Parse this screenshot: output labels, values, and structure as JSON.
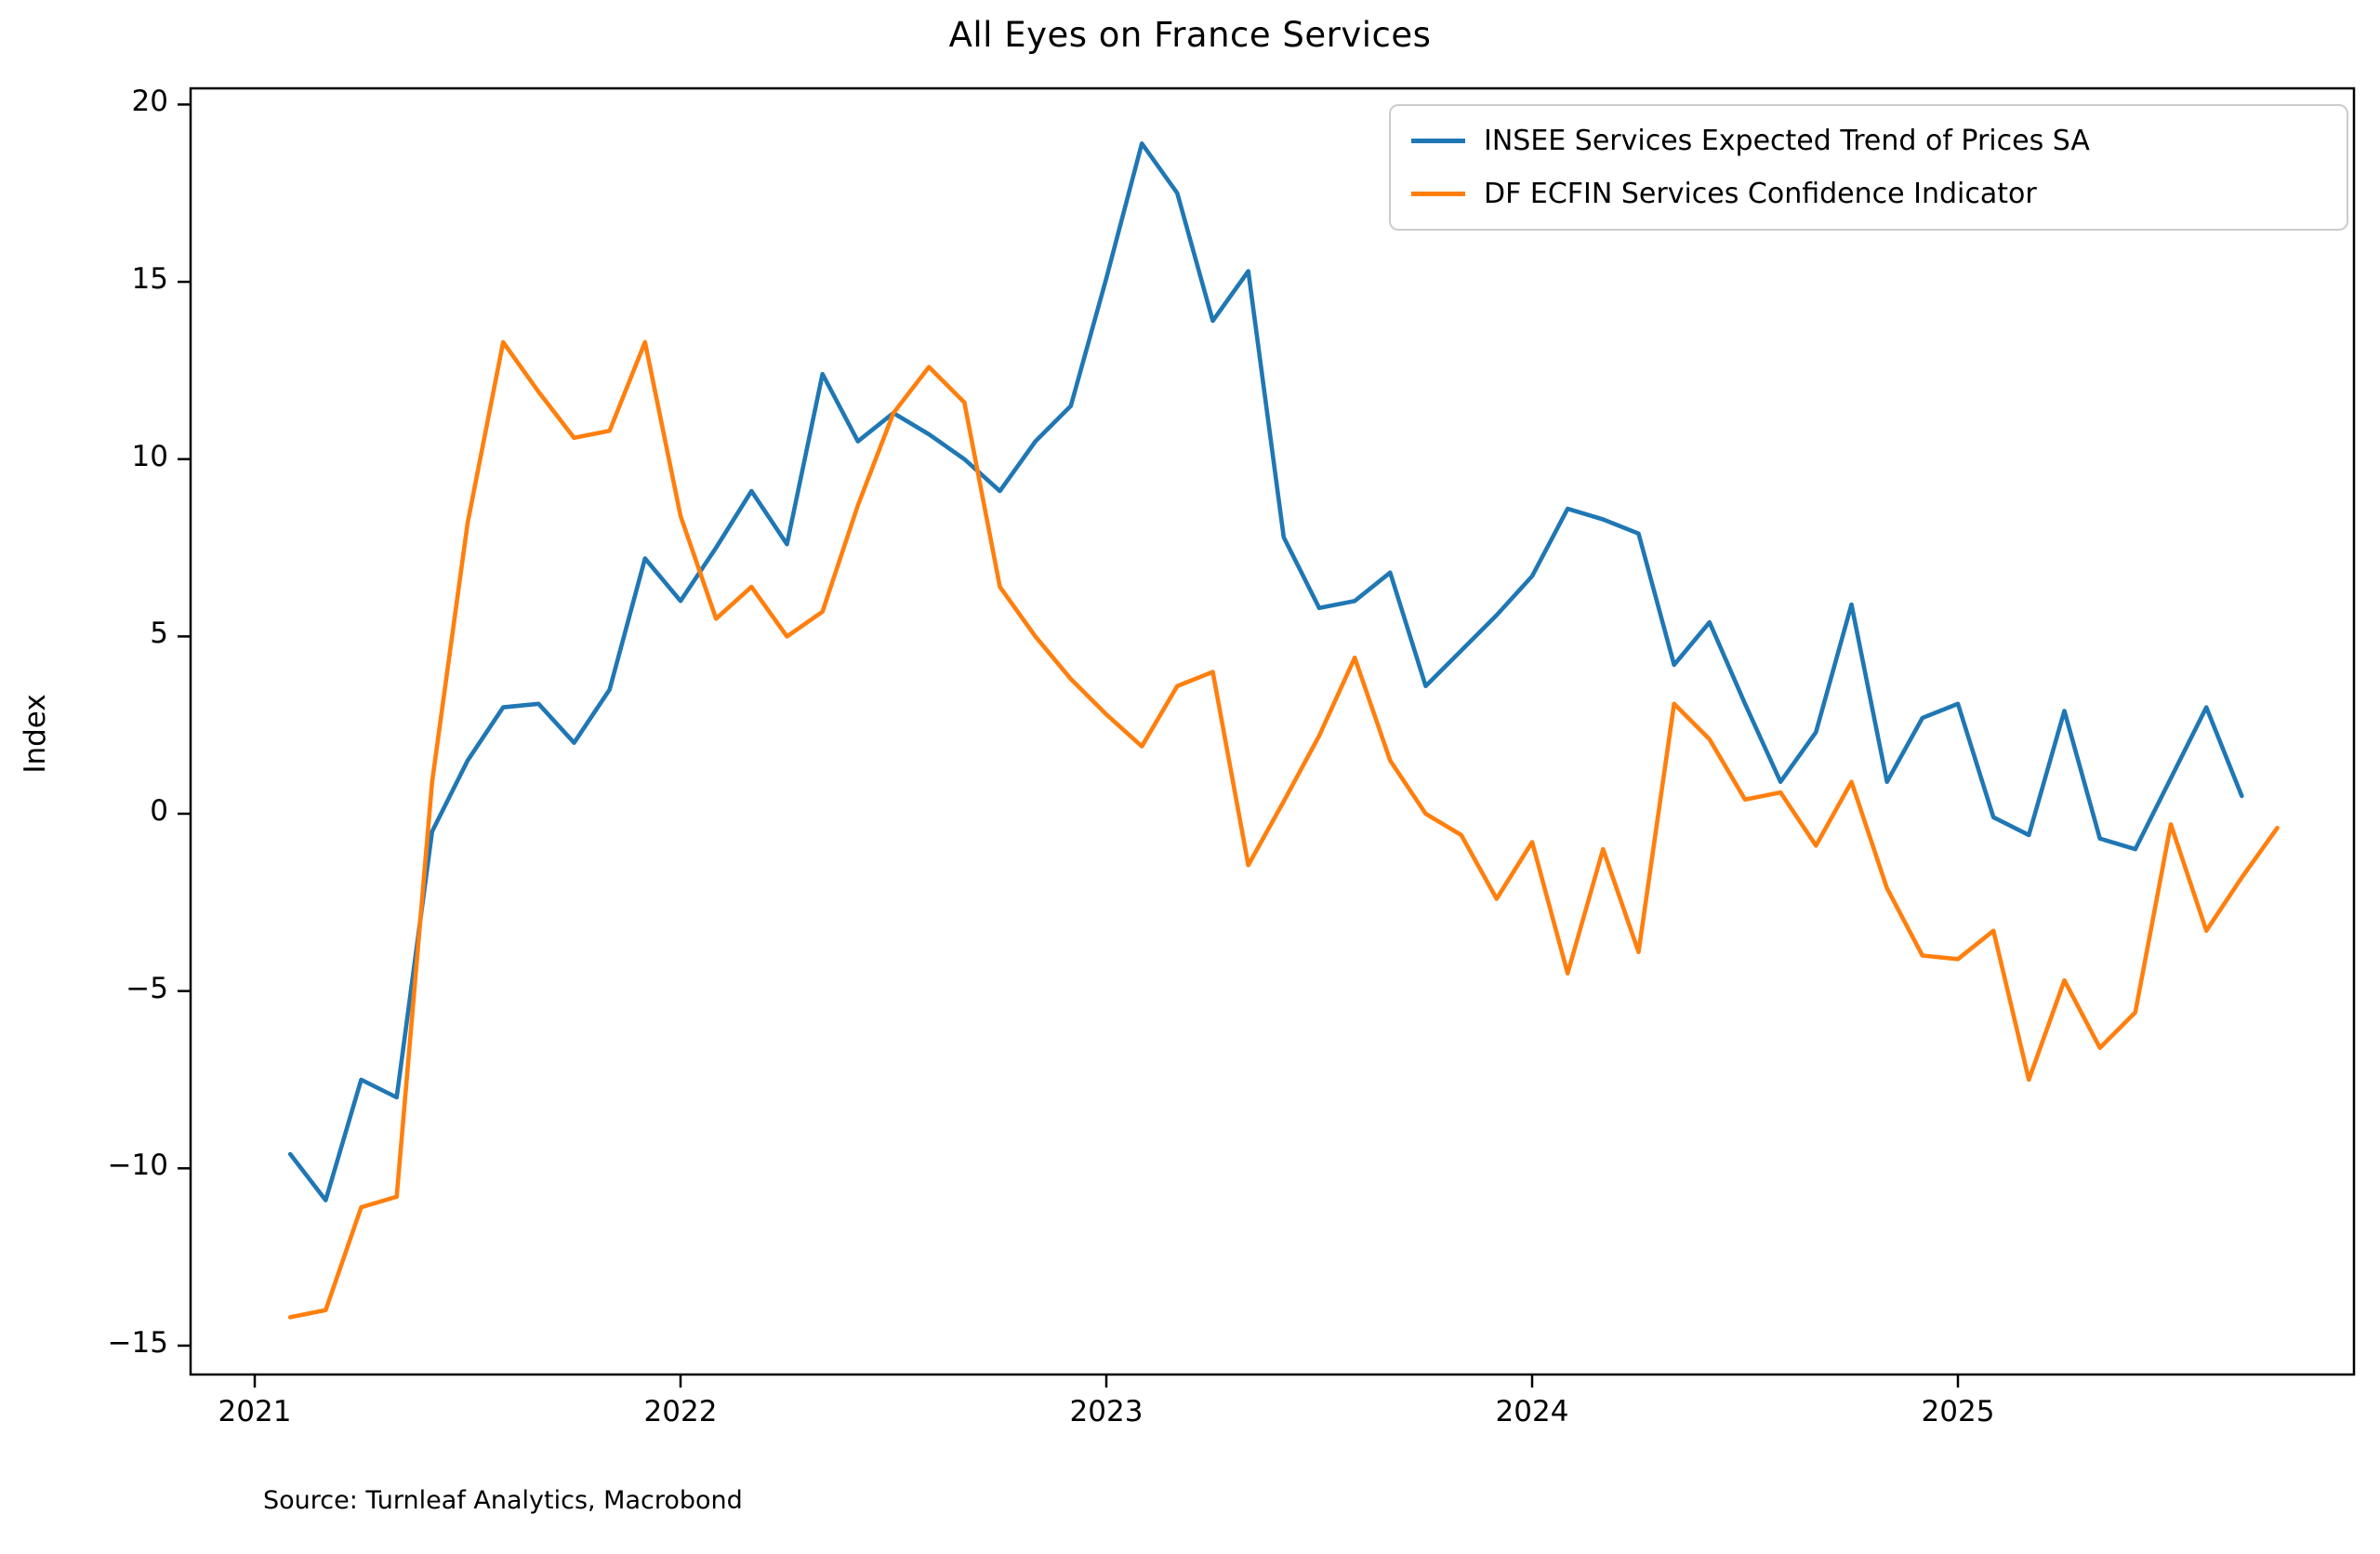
{
  "chart_data": {
    "type": "line",
    "title": "All Eyes on France Services",
    "xlabel": "",
    "ylabel": "Index",
    "source_note": "Source: Turnleaf Analytics, Macrobond",
    "grid": false,
    "legend_position": "upper right",
    "x_axis": {
      "unit": "month",
      "origin_label": "Jan 2021",
      "tick_months": [
        0,
        12,
        24,
        36,
        48
      ],
      "tick_labels": [
        "2021",
        "2022",
        "2023",
        "2024",
        "2025"
      ]
    },
    "y_axis": {
      "ticks": [
        20,
        15,
        10,
        5,
        0,
        -5,
        -10,
        -15
      ],
      "tick_labels": [
        "20",
        "15",
        "10",
        "5",
        "0",
        "−5",
        "−10",
        "−15"
      ],
      "ylim": [
        -15.8,
        20.4
      ]
    },
    "series": [
      {
        "name": "INSEE Services Expected Trend of Prices SA",
        "color": "#1f77b4",
        "start_month_offset": 1,
        "start_label": "Feb 2021",
        "end_label": "Sep 2025",
        "values": [
          -9.6,
          -10.9,
          -7.5,
          -8.0,
          -0.5,
          1.5,
          3.0,
          3.1,
          2.0,
          3.5,
          7.2,
          6.0,
          7.5,
          9.1,
          7.6,
          12.4,
          10.5,
          11.3,
          10.7,
          10.0,
          9.1,
          10.5,
          11.5,
          15.1,
          18.9,
          17.5,
          13.9,
          15.3,
          7.8,
          5.8,
          6.0,
          6.8,
          3.6,
          4.6,
          5.6,
          6.7,
          8.6,
          8.3,
          7.9,
          4.2,
          5.4,
          3.1,
          0.9,
          2.3,
          5.9,
          0.9,
          2.7,
          3.1,
          -0.1,
          -0.6,
          2.9,
          -0.7,
          -1.0,
          1.0,
          3.0,
          0.5
        ]
      },
      {
        "name": "DF ECFIN Services Confidence Indicator",
        "color": "#ff7f0e",
        "start_month_offset": 1,
        "start_label": "Feb 2021",
        "end_label": "Oct 2025",
        "values": [
          -14.2,
          -14.0,
          -11.1,
          -10.8,
          0.9,
          8.2,
          13.3,
          11.9,
          10.6,
          10.8,
          13.3,
          8.4,
          5.5,
          6.4,
          5.0,
          5.7,
          8.7,
          11.3,
          12.6,
          11.6,
          6.4,
          5.0,
          3.8,
          2.8,
          1.9,
          3.6,
          4.0,
          -1.45,
          0.35,
          2.2,
          4.4,
          1.5,
          0.0,
          -0.6,
          -2.4,
          -0.8,
          -4.5,
          -1.0,
          -3.9,
          3.1,
          2.1,
          0.4,
          0.6,
          -0.9,
          0.9,
          -2.1,
          -4.0,
          -4.1,
          -3.3,
          -7.5,
          -4.7,
          -6.6,
          -5.6,
          -0.3,
          -3.3,
          -1.8,
          -0.4
        ]
      }
    ]
  }
}
